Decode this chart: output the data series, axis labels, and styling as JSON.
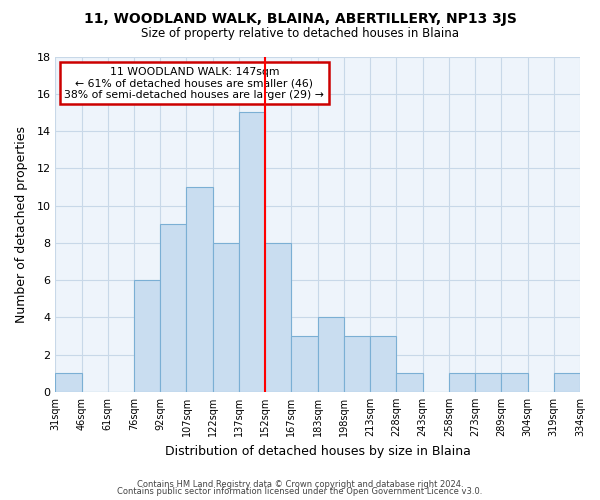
{
  "title1": "11, WOODLAND WALK, BLAINA, ABERTILLERY, NP13 3JS",
  "title2": "Size of property relative to detached houses in Blaina",
  "xlabel": "Distribution of detached houses by size in Blaina",
  "ylabel": "Number of detached properties",
  "bin_labels": [
    "31sqm",
    "46sqm",
    "61sqm",
    "76sqm",
    "92sqm",
    "107sqm",
    "122sqm",
    "137sqm",
    "152sqm",
    "167sqm",
    "183sqm",
    "198sqm",
    "213sqm",
    "228sqm",
    "243sqm",
    "258sqm",
    "273sqm",
    "289sqm",
    "304sqm",
    "319sqm",
    "334sqm"
  ],
  "bar_values": [
    1,
    0,
    0,
    6,
    9,
    11,
    8,
    15,
    8,
    3,
    4,
    3,
    3,
    1,
    0,
    1,
    1,
    1,
    0,
    1
  ],
  "bar_color": "#c9ddf0",
  "bar_edge_color": "#7bafd4",
  "red_line_index": 8,
  "annotation_line1": "11 WOODLAND WALK: 147sqm",
  "annotation_line2": "← 61% of detached houses are smaller (46)",
  "annotation_line3": "38% of semi-detached houses are larger (29) →",
  "annotation_box_edge": "#cc0000",
  "ylim": [
    0,
    18
  ],
  "yticks": [
    0,
    2,
    4,
    6,
    8,
    10,
    12,
    14,
    16,
    18
  ],
  "footer1": "Contains HM Land Registry data © Crown copyright and database right 2024.",
  "footer2": "Contains public sector information licensed under the Open Government Licence v3.0.",
  "background_color": "#ffffff",
  "grid_color": "#c8d8e8"
}
